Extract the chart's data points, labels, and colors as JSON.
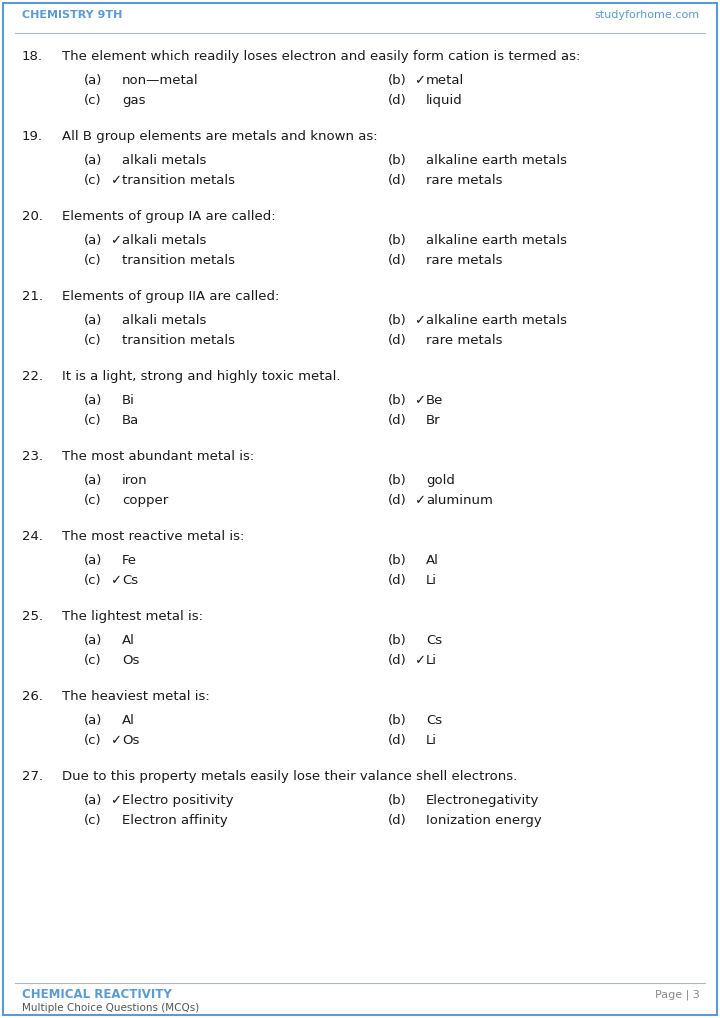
{
  "header_left": "CHEMISTRY 9TH",
  "header_right": "studyforhome.com",
  "footer_left_title": "CHEMICAL REACTIVITY",
  "footer_left_sub": "Multiple Choice Questions (MCQs)",
  "footer_right": "Page | 3",
  "bg_color": "#ffffff",
  "border_color": "#5b9bd5",
  "header_color": "#5b9bd5",
  "footer_title_color": "#5b9bd5",
  "text_color": "#1a1a1a",
  "watermark_color": "#c8d8e8",
  "questions": [
    {
      "num": "18.",
      "question": "The element which readily loses electron and easily form cation is termed as:",
      "options": [
        {
          "label": "(a)",
          "check": false,
          "text": "non—metal"
        },
        {
          "label": "(b)",
          "check": true,
          "text": "metal"
        },
        {
          "label": "(c)",
          "check": false,
          "text": "gas"
        },
        {
          "label": "(d)",
          "check": false,
          "text": "liquid"
        }
      ]
    },
    {
      "num": "19.",
      "question": "All B group elements are metals and known as:",
      "options": [
        {
          "label": "(a)",
          "check": false,
          "text": "alkali metals"
        },
        {
          "label": "(b)",
          "check": false,
          "text": "alkaline earth metals"
        },
        {
          "label": "(c)",
          "check": true,
          "text": "transition metals"
        },
        {
          "label": "(d)",
          "check": false,
          "text": "rare metals"
        }
      ]
    },
    {
      "num": "20.",
      "question": "Elements of group IA are called:",
      "options": [
        {
          "label": "(a)",
          "check": true,
          "text": "alkali metals"
        },
        {
          "label": "(b)",
          "check": false,
          "text": "alkaline earth metals"
        },
        {
          "label": "(c)",
          "check": false,
          "text": "transition metals"
        },
        {
          "label": "(d)",
          "check": false,
          "text": "rare metals"
        }
      ]
    },
    {
      "num": "21.",
      "question": "Elements of group IIA are called:",
      "options": [
        {
          "label": "(a)",
          "check": false,
          "text": "alkali metals"
        },
        {
          "label": "(b)",
          "check": true,
          "text": "alkaline earth metals"
        },
        {
          "label": "(c)",
          "check": false,
          "text": "transition metals"
        },
        {
          "label": "(d)",
          "check": false,
          "text": "rare metals"
        }
      ]
    },
    {
      "num": "22.",
      "question": "It is a light, strong and highly toxic metal.",
      "options": [
        {
          "label": "(a)",
          "check": false,
          "text": "Bi"
        },
        {
          "label": "(b)",
          "check": true,
          "text": "Be"
        },
        {
          "label": "(c)",
          "check": false,
          "text": "Ba"
        },
        {
          "label": "(d)",
          "check": false,
          "text": "Br"
        }
      ]
    },
    {
      "num": "23.",
      "question": "The most abundant metal is:",
      "options": [
        {
          "label": "(a)",
          "check": false,
          "text": "iron"
        },
        {
          "label": "(b)",
          "check": false,
          "text": "gold"
        },
        {
          "label": "(c)",
          "check": false,
          "text": "copper"
        },
        {
          "label": "(d)",
          "check": true,
          "text": "aluminum"
        }
      ]
    },
    {
      "num": "24.",
      "question": "The most reactive metal is:",
      "options": [
        {
          "label": "(a)",
          "check": false,
          "text": "Fe"
        },
        {
          "label": "(b)",
          "check": false,
          "text": "Al"
        },
        {
          "label": "(c)",
          "check": true,
          "text": "Cs"
        },
        {
          "label": "(d)",
          "check": false,
          "text": "Li"
        }
      ]
    },
    {
      "num": "25.",
      "question": "The lightest metal is:",
      "options": [
        {
          "label": "(a)",
          "check": false,
          "text": "Al"
        },
        {
          "label": "(b)",
          "check": false,
          "text": "Cs"
        },
        {
          "label": "(c)",
          "check": false,
          "text": "Os"
        },
        {
          "label": "(d)",
          "check": true,
          "text": "Li"
        }
      ]
    },
    {
      "num": "26.",
      "question": "The heaviest metal is:",
      "options": [
        {
          "label": "(a)",
          "check": false,
          "text": "Al"
        },
        {
          "label": "(b)",
          "check": false,
          "text": "Cs"
        },
        {
          "label": "(c)",
          "check": true,
          "text": "Os"
        },
        {
          "label": "(d)",
          "check": false,
          "text": "Li"
        }
      ]
    },
    {
      "num": "27.",
      "question": "Due to this property metals easily lose their valance shell electrons.",
      "options": [
        {
          "label": "(a)",
          "check": true,
          "text": "Electro positivity"
        },
        {
          "label": "(b)",
          "check": false,
          "text": "Electronegativity"
        },
        {
          "label": "(c)",
          "check": false,
          "text": "Electron affinity"
        },
        {
          "label": "(d)",
          "check": false,
          "text": "Ionization energy"
        }
      ]
    }
  ]
}
